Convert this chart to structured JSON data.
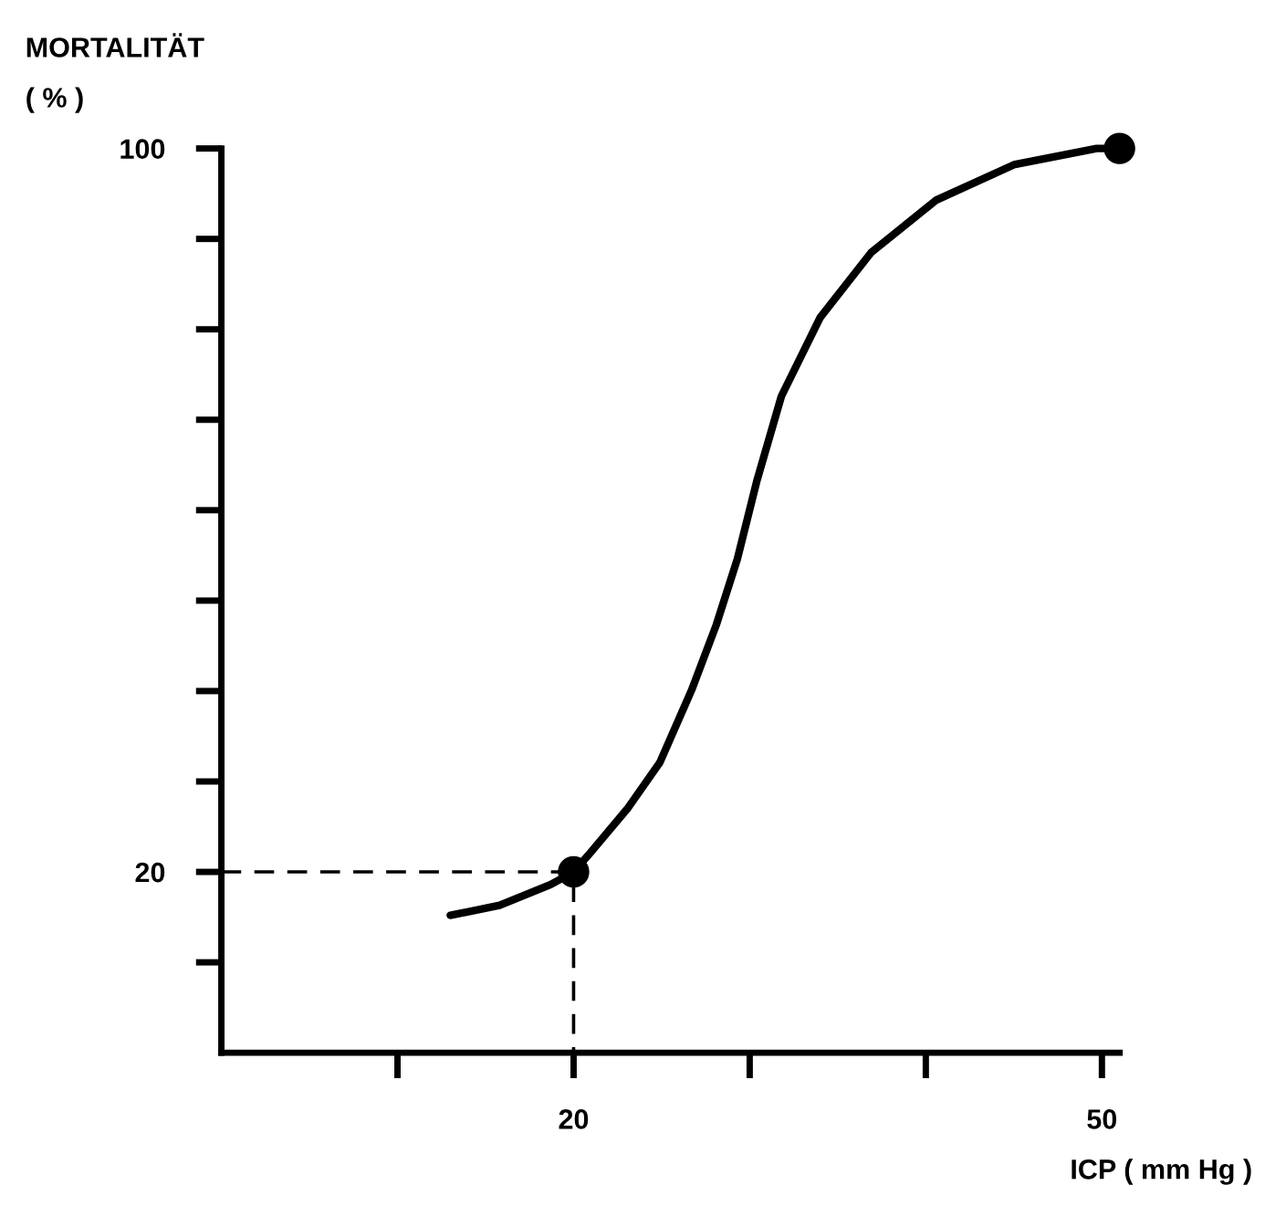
{
  "chart_data": {
    "type": "line",
    "ylabel": "MORTALITÄT\n( % )",
    "xlabel": "ICP ( mm Hg )",
    "xlim": [
      0,
      51
    ],
    "ylim": [
      0,
      100
    ],
    "xticks": [
      {
        "value": 10,
        "label": null
      },
      20,
      {
        "value": 30,
        "label": null
      },
      {
        "value": 40,
        "label": null
      },
      50
    ],
    "yticks": [
      {
        "value": 10,
        "label": null
      },
      20,
      {
        "value": 30,
        "label": null
      },
      {
        "value": 40,
        "label": null
      },
      {
        "value": 50,
        "label": null
      },
      {
        "value": 60,
        "label": null
      },
      {
        "value": 70,
        "label": null
      },
      {
        "value": 80,
        "label": null
      },
      {
        "value": 90,
        "label": null
      },
      100
    ],
    "grid": false,
    "series": [
      {
        "color": "#000000",
        "marker": "none",
        "line_style": "solid",
        "x": [
          13.0,
          15.8,
          18.7,
          20,
          20.9,
          23.1,
          24.9,
          26.7,
          28.1,
          29.3,
          30.4,
          31.8,
          34.0,
          36.9,
          40.6,
          45.0,
          49.7,
          51
        ],
        "values": [
          15.2,
          16.3,
          18.6,
          20,
          22.0,
          27.1,
          32.1,
          40.1,
          47.3,
          54.6,
          63.2,
          72.6,
          81.3,
          88.5,
          94.3,
          98.2,
          100,
          100
        ]
      },
      {
        "color": "#000000",
        "marker": "none",
        "line_style": "dashed",
        "x": [
          0,
          20,
          20
        ],
        "values": [
          20,
          20,
          0
        ]
      },
      {
        "type": "scatter",
        "color": "#000000",
        "marker": "circle",
        "x": [
          20,
          51
        ],
        "values": [
          20,
          100
        ]
      }
    ]
  }
}
